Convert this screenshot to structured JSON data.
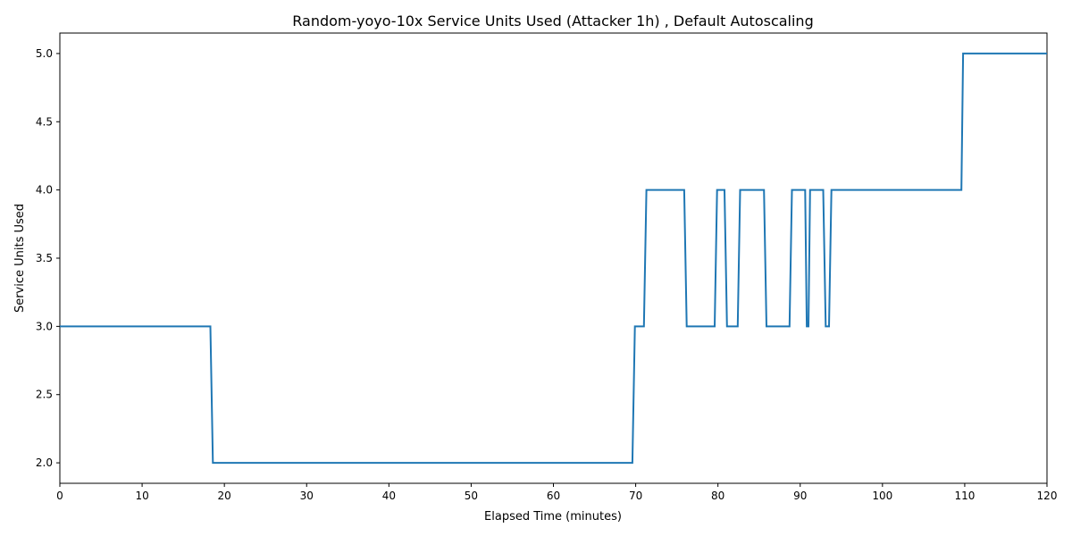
{
  "chart_data": {
    "type": "line",
    "title": "Random-yoyo-10x Service Units Used (Attacker 1h) , Default Autoscaling",
    "xlabel": "Elapsed Time (minutes)",
    "ylabel": "Service Units Used",
    "xlim": [
      0,
      120
    ],
    "ylim": [
      1.85,
      5.15
    ],
    "xticks": [
      0,
      10,
      20,
      30,
      40,
      50,
      60,
      70,
      80,
      90,
      100,
      110,
      120
    ],
    "yticks": [
      2.0,
      2.5,
      3.0,
      3.5,
      4.0,
      4.5,
      5.0
    ],
    "ytick_labels": [
      "2.0",
      "2.5",
      "3.0",
      "3.5",
      "4.0",
      "4.5",
      "5.0"
    ],
    "grid": false,
    "line_color": "#1f77b4",
    "series": [
      {
        "x": [
          0,
          18.3,
          18.6,
          69.6,
          69.9,
          71.0,
          71.3,
          75.9,
          76.2,
          79.6,
          79.9,
          80.8,
          81.1,
          82.4,
          82.7,
          85.6,
          85.9,
          88.7,
          89.0,
          90.6,
          90.8,
          91.0,
          91.2,
          92.8,
          93.1,
          93.5,
          93.8,
          109.6,
          109.8,
          120
        ],
        "y": [
          3,
          3,
          2,
          2,
          3,
          3,
          4,
          4,
          3,
          3,
          4,
          4,
          3,
          3,
          4,
          4,
          3,
          3,
          4,
          4,
          3,
          3,
          4,
          4,
          3,
          3,
          4,
          4,
          5,
          5
        ]
      }
    ]
  }
}
